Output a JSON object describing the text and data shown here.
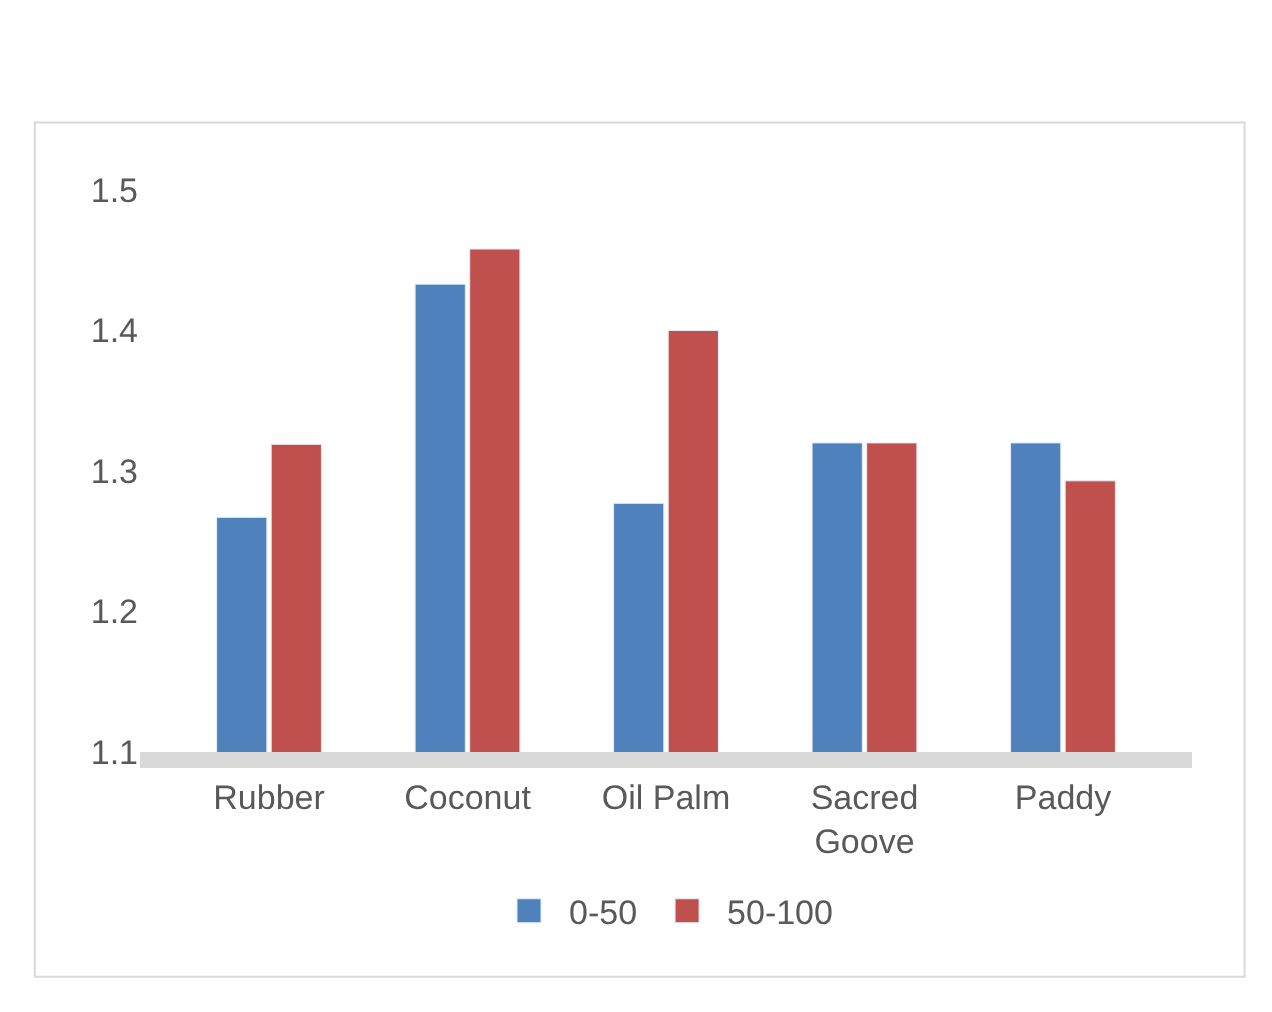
{
  "chart_data": {
    "type": "bar",
    "categories": [
      "Rubber",
      "Coconut",
      "Oil Palm",
      "Sacred Goove",
      "Paddy"
    ],
    "series": [
      {
        "name": "0-50",
        "color": "#4f81bd",
        "values": [
          1.267,
          1.433,
          1.277,
          1.32,
          1.32
        ]
      },
      {
        "name": "50-100",
        "color": "#c0504d",
        "values": [
          1.319,
          1.458,
          1.4,
          1.32,
          1.293
        ]
      }
    ],
    "ylim": [
      1.1,
      1.5
    ],
    "yticks": [
      1.1,
      1.2,
      1.3,
      1.4,
      1.5
    ],
    "legend": "bottom"
  }
}
